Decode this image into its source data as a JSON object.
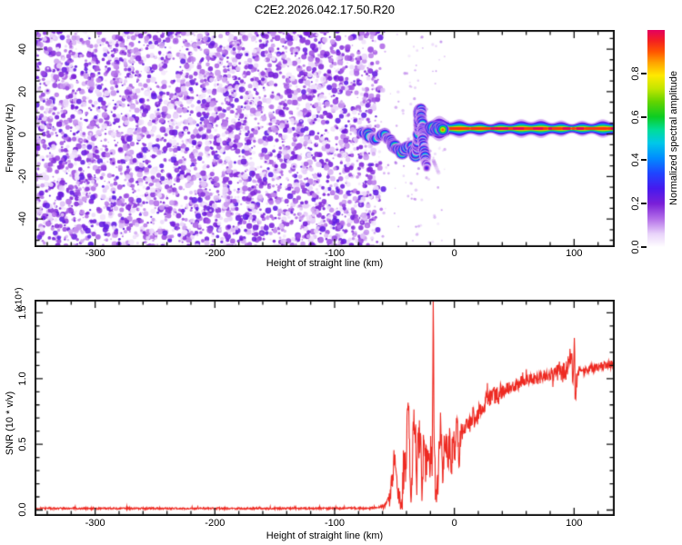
{
  "title": "C2E2.2026.042.17.50.R20",
  "chart_data": [
    {
      "type": "heatmap",
      "name": "spectrogram",
      "xlabel": "Height of straight line (km)",
      "ylabel": "Frequency (Hz)",
      "xlim": [
        -350.6,
        133.9
      ],
      "ylim": [
        -53.2,
        49.0
      ],
      "x_ticks": [
        -300,
        -200,
        -100,
        0,
        100
      ],
      "x_minor_step": 20,
      "y_ticks": [
        -40,
        -20,
        0,
        20,
        40
      ],
      "y_minor_step": 5,
      "background": "#ffffff",
      "noise_field": {
        "description": "random speckle noise, low normalized amplitude 0.03-0.25",
        "x_range": [
          -350.6,
          -60
        ],
        "fade_start": -70,
        "blob_count": 4600
      },
      "signal_trace": {
        "points_km_hz": [
          [
            -77.5,
            1.0
          ],
          [
            -74,
            0.2
          ],
          [
            -72,
            -0.3
          ],
          [
            -69,
            -1.5
          ],
          [
            -66,
            -2.5
          ],
          [
            -62,
            -1.2
          ],
          [
            -58.5,
            -0.2
          ],
          [
            -55,
            -2.0
          ],
          [
            -51,
            -5.4
          ],
          [
            -47,
            -7.0
          ],
          [
            -43,
            -8.4
          ],
          [
            -39.5,
            -6.5
          ],
          [
            -36.5,
            -5.2
          ],
          [
            -34,
            -7.5
          ],
          [
            -32.5,
            -9.8
          ],
          [
            -31,
            -6.0
          ],
          [
            -29.5,
            2.0
          ],
          [
            -28.7,
            8.0
          ],
          [
            -28.2,
            11.9
          ],
          [
            -27.5,
            8.0
          ],
          [
            -26.8,
            3.2
          ],
          [
            -26,
            -3.0
          ],
          [
            -25,
            -10.9
          ],
          [
            -24,
            -14.0
          ],
          [
            -22.8,
            -16.2
          ]
        ],
        "intensity_km": [
          [
            -77.5,
            0.75
          ],
          [
            -74,
            0.5
          ],
          [
            -72,
            0.9
          ],
          [
            -69,
            0.55
          ],
          [
            -66,
            0.7
          ],
          [
            -62,
            0.5
          ],
          [
            -58.5,
            0.85
          ],
          [
            -55,
            0.6
          ],
          [
            -51,
            0.8
          ],
          [
            -47,
            0.65
          ],
          [
            -43,
            0.9
          ],
          [
            -39.5,
            0.75
          ],
          [
            -36.5,
            0.65
          ],
          [
            -34,
            0.8
          ],
          [
            -32.5,
            0.85
          ],
          [
            -31,
            0.6
          ],
          [
            -29.5,
            0.7
          ],
          [
            -28.5,
            0.8
          ],
          [
            -27.5,
            0.6
          ],
          [
            -26.8,
            0.65
          ],
          [
            -26,
            0.6
          ],
          [
            -25,
            0.7
          ],
          [
            -24,
            0.5
          ],
          [
            -22.8,
            0.35
          ]
        ],
        "faint_tail_km_hz": [
          [
            -17.5,
            -12.5
          ],
          [
            -13,
            -18.5
          ]
        ]
      },
      "carrier_band": {
        "center_freq_hz": 2.6,
        "x_range_km": [
          -21,
          133.9
        ],
        "core_amplitude": 1.0,
        "blob_region_km": [
          -20.5,
          -8.3
        ]
      },
      "colorbar": {
        "label": "Normalized spectral amplitude",
        "ticks": [
          0.0,
          0.2,
          0.4,
          0.6,
          0.8
        ],
        "range": [
          0.0,
          1.0
        ],
        "stops": [
          [
            0.0,
            "#ffffff"
          ],
          [
            0.06,
            "#e9d4fa"
          ],
          [
            0.13,
            "#b36ee8"
          ],
          [
            0.2,
            "#7a1fd8"
          ],
          [
            0.27,
            "#4619ee"
          ],
          [
            0.34,
            "#1f45ff"
          ],
          [
            0.41,
            "#008cff"
          ],
          [
            0.48,
            "#00c8e8"
          ],
          [
            0.54,
            "#00dd99"
          ],
          [
            0.6,
            "#0ccc22"
          ],
          [
            0.67,
            "#64d400"
          ],
          [
            0.73,
            "#c3e600"
          ],
          [
            0.79,
            "#ffe900"
          ],
          [
            0.85,
            "#ffa200"
          ],
          [
            0.9,
            "#ff5500"
          ],
          [
            0.95,
            "#f42020"
          ],
          [
            1.0,
            "#e4005f"
          ]
        ]
      }
    },
    {
      "type": "line",
      "name": "snr",
      "xlabel": "Height of straight line (km)",
      "ylabel": "SNR (10 * v/v)",
      "scale_note": "(x10⁴)",
      "xlim": [
        -350.6,
        133.9
      ],
      "ylim": [
        -0.045,
        1.6
      ],
      "x_ticks": [
        -300,
        -200,
        -100,
        0,
        100
      ],
      "x_minor_step": 20,
      "y_ticks": [
        0.0,
        0.5,
        1.0,
        1.5
      ],
      "y_minor_step": 0.1,
      "line_color": "#ee2a22",
      "keypoints": [
        [
          -350.6,
          0.012
        ],
        [
          -150,
          0.012
        ],
        [
          -80,
          0.013
        ],
        [
          -65,
          0.016
        ],
        [
          -58,
          0.03
        ],
        [
          -54,
          0.1
        ],
        [
          -51,
          0.28
        ],
        [
          -49.5,
          0.43
        ],
        [
          -48,
          0.18
        ],
        [
          -46,
          0.08
        ],
        [
          -44,
          0.06
        ],
        [
          -42,
          0.25
        ],
        [
          -40,
          0.45
        ],
        [
          -38.5,
          0.88
        ],
        [
          -37,
          0.35
        ],
        [
          -36,
          0.15
        ],
        [
          -34.5,
          0.55
        ],
        [
          -33,
          0.72
        ],
        [
          -31.5,
          0.25
        ],
        [
          -30,
          0.5
        ],
        [
          -28.5,
          0.6
        ],
        [
          -27,
          0.18
        ],
        [
          -25.5,
          0.5
        ],
        [
          -24,
          0.28
        ],
        [
          -22.5,
          0.55
        ],
        [
          -21,
          0.35
        ],
        [
          -19.5,
          0.45
        ],
        [
          -18.3,
          0.4
        ],
        [
          -17.6,
          1.6
        ],
        [
          -16.9,
          0.45
        ],
        [
          -16,
          0.22
        ],
        [
          -14.5,
          0.1
        ],
        [
          -13,
          0.35
        ],
        [
          -11.5,
          0.72
        ],
        [
          -10,
          0.3
        ],
        [
          -8.5,
          0.45
        ],
        [
          -7,
          0.6
        ],
        [
          -5.5,
          0.35
        ],
        [
          -4,
          0.55
        ],
        [
          -2.5,
          0.3
        ],
        [
          -1,
          0.6
        ],
        [
          0.5,
          0.45
        ],
        [
          2,
          0.68
        ],
        [
          4,
          0.4
        ],
        [
          6,
          0.62
        ],
        [
          8,
          0.55
        ],
        [
          10,
          0.7
        ],
        [
          12,
          0.62
        ],
        [
          15,
          0.72
        ],
        [
          18,
          0.68
        ],
        [
          22,
          0.78
        ],
        [
          26,
          0.82
        ],
        [
          30,
          0.85
        ],
        [
          35,
          0.88
        ],
        [
          40,
          0.9
        ],
        [
          45,
          0.93
        ],
        [
          50,
          0.94
        ],
        [
          55,
          0.97
        ],
        [
          60,
          0.99
        ],
        [
          65,
          1.0
        ],
        [
          70,
          1.0
        ],
        [
          75,
          1.02
        ],
        [
          80,
          1.03
        ],
        [
          85,
          1.04
        ],
        [
          88,
          1.05
        ],
        [
          90,
          1.0
        ],
        [
          92,
          1.08
        ],
        [
          94,
          1.04
        ],
        [
          96,
          1.12
        ],
        [
          98,
          1.25
        ],
        [
          99,
          0.9
        ],
        [
          100,
          1.18
        ],
        [
          101,
          0.85
        ],
        [
          102,
          1.05
        ],
        [
          104,
          1.05
        ],
        [
          108,
          1.06
        ],
        [
          112,
          1.07
        ],
        [
          116,
          1.08
        ],
        [
          120,
          1.09
        ],
        [
          125,
          1.1
        ],
        [
          130,
          1.11
        ],
        [
          133.9,
          1.12
        ]
      ],
      "noise_segments": [
        [
          -350.6,
          -62,
          0.007
        ],
        [
          -62,
          -55,
          0.02
        ],
        [
          -55,
          -44,
          0.07
        ],
        [
          -44,
          -15,
          0.17
        ],
        [
          -15,
          5,
          0.13
        ],
        [
          5,
          40,
          0.07
        ],
        [
          40,
          85,
          0.045
        ],
        [
          85,
          103,
          0.09
        ],
        [
          103,
          133.9,
          0.03
        ]
      ]
    }
  ],
  "frame_color": "#111111"
}
